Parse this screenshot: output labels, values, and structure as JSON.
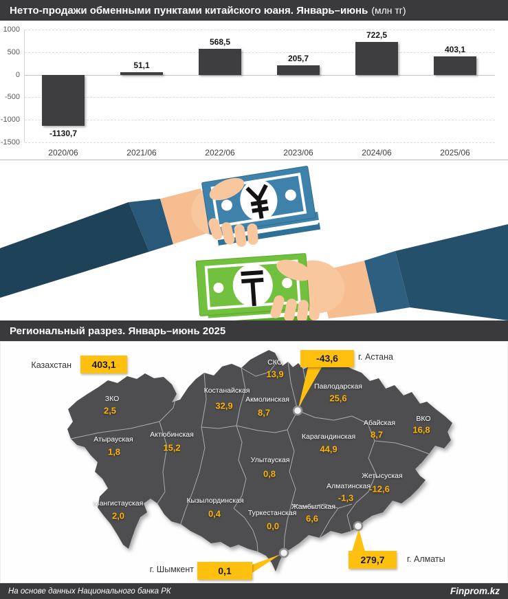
{
  "chart_header": {
    "title": "Нетто-продажи обменными пунктами китайского юаня. Январь–июнь",
    "unit": "(млн тг)"
  },
  "chart_data": {
    "type": "bar",
    "title": "Нетто-продажи обменными пунктами китайского юаня. Январь–июнь (млн тг)",
    "categories": [
      "2020/06",
      "2021/06",
      "2022/06",
      "2023/06",
      "2024/06",
      "2025/06"
    ],
    "values": [
      -1130.7,
      51.1,
      568.5,
      205.7,
      722.5,
      403.1
    ],
    "value_labels": [
      "-1130,7",
      "51,1",
      "568,5",
      "205,7",
      "722,5",
      "403,1"
    ],
    "xlabel": "",
    "ylabel": "",
    "ylim": [
      -1500,
      1000
    ],
    "yticks": [
      1000,
      500,
      0,
      -500,
      -1000,
      -1500
    ],
    "grid": "horizontal-dashed",
    "legend": "none",
    "bar_color": "#3e3e40"
  },
  "region_header": {
    "title": "Региональный разрез. Январь–июнь 2025"
  },
  "map": {
    "country_label": "Казахстан",
    "country_value": "403,1",
    "regions": [
      {
        "name": "СКО",
        "value": "13,9"
      },
      {
        "name": "Костанайская",
        "value": "32,9"
      },
      {
        "name": "Акмолинская",
        "value": "8,7"
      },
      {
        "name": "Павлодарская",
        "value": "25,6"
      },
      {
        "name": "ЗКО",
        "value": "2,5"
      },
      {
        "name": "Атырауская",
        "value": "1,8"
      },
      {
        "name": "Актюбинская",
        "value": "15,2"
      },
      {
        "name": "Абайская",
        "value": "8,7"
      },
      {
        "name": "ВКО",
        "value": "16,8"
      },
      {
        "name": "Карагандинская",
        "value": "44,9"
      },
      {
        "name": "Улытауская",
        "value": "0,8"
      },
      {
        "name": "Мангистауская",
        "value": "2,0"
      },
      {
        "name": "Кызылординская",
        "value": "0,4"
      },
      {
        "name": "Туркестанская",
        "value": "0,0"
      },
      {
        "name": "Жамбылская",
        "value": "6,6"
      },
      {
        "name": "Алматинская",
        "value": "-1,3"
      },
      {
        "name": "Жетысуская",
        "value": "-12,6"
      }
    ],
    "cities": [
      {
        "name": "г. Астана",
        "value": "-43,6"
      },
      {
        "name": "г. Алматы",
        "value": "279,7"
      },
      {
        "name": "г. Шымкент",
        "value": "0,1"
      }
    ]
  },
  "footer": {
    "source": "На основе данных Национального банка РК",
    "brand": "Finprom.kz"
  },
  "colors": {
    "accent_yellow": "#ffc010",
    "map_value_gold": "#ffb400",
    "bar_fill": "#3e3e40",
    "header_bg": "#3a3a3c",
    "map_fill": "#4e4e50",
    "yuan_note_blue": "#3e82ab",
    "tenge_note_green": "#72c13e",
    "sleeve_navy": "#1e4258"
  }
}
